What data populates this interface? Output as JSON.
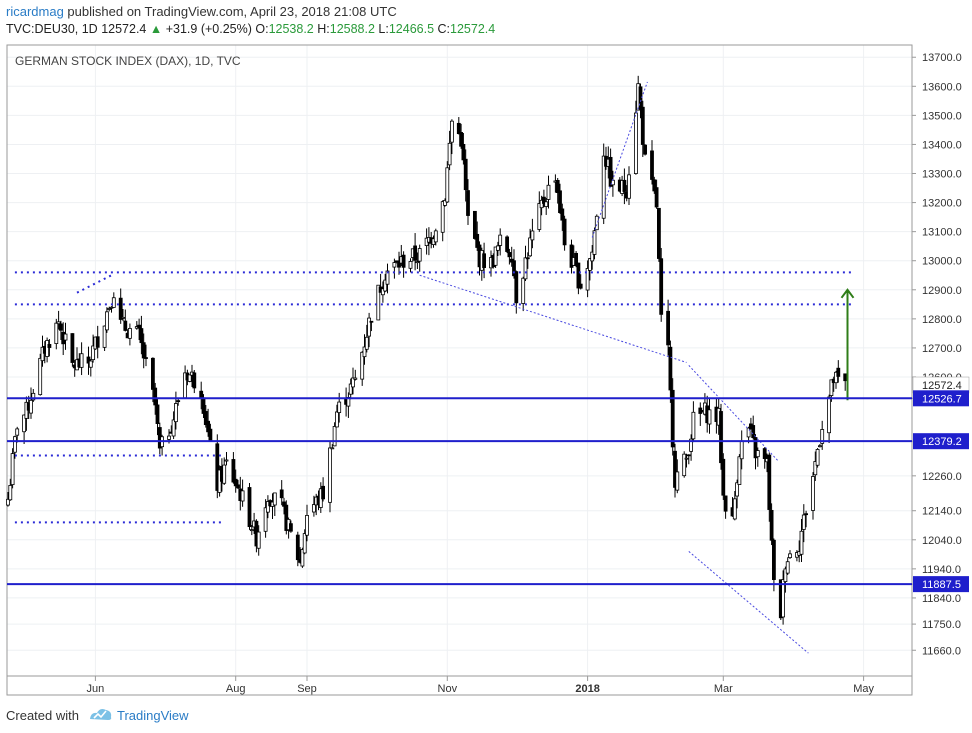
{
  "header": {
    "author": "ricardmag",
    "published": "published on TradingView.com, April 23, 2018 21:08 UTC",
    "symbol": "TVC:DEU30, 1D",
    "last": "12572.4",
    "change": "+31.9 (+0.25%)",
    "o_label": "O:",
    "o_value": "12538.2",
    "h_label": "H:",
    "h_value": "12588.2",
    "l_label": "L:",
    "l_value": "12466.5",
    "c_label": "C:",
    "c_value": "12572.4"
  },
  "footer": {
    "created_with": "Created with",
    "brand": "TradingView"
  },
  "chart_data": {
    "type": "candlestick",
    "title": "GERMAN STOCK INDEX (DAX), 1D, TVC",
    "y_ticks": [
      "13700.0",
      "13600.0",
      "13500.0",
      "13400.0",
      "13300.0",
      "13200.0",
      "13100.0",
      "13000.0",
      "12900.0",
      "12800.0",
      "12700.0",
      "12600.0",
      "12526.7",
      "12379.2",
      "12260.0",
      "12140.0",
      "12040.0",
      "11940.0",
      "11887.5",
      "11840.0",
      "11750.0",
      "11660.0"
    ],
    "x_ticks": [
      "Jun",
      "Aug",
      "Sep",
      "Nov",
      "2018",
      "Mar",
      "May"
    ],
    "price_labels": [
      {
        "text": "12572.4",
        "price": 12572.4,
        "style": "plain"
      },
      {
        "text": "12526.7",
        "price": 12526.7,
        "style": "blue"
      },
      {
        "text": "12379.2",
        "price": 12379.2,
        "style": "blue"
      },
      {
        "text": "11887.5",
        "price": 11887.5,
        "style": "blue"
      }
    ],
    "horizontal_levels": [
      12526.7,
      12379.2,
      11887.5
    ],
    "dotted_levels": [
      12950,
      12840
    ],
    "colors": {
      "lines": "#1f1fcc",
      "dotted": "#2b2bd6",
      "trend": "#4a4ae0",
      "candles": "#000000",
      "arrow": "#2f7d18",
      "header_green": "#2a9a3a",
      "brand": "#2a7cc6"
    },
    "anchors": [
      [
        "2017-04-24",
        12180
      ],
      [
        "2017-04-28",
        12440
      ],
      [
        "2017-05-02",
        12480
      ],
      [
        "2017-05-10",
        12700
      ],
      [
        "2017-05-16",
        12790
      ],
      [
        "2017-05-22",
        12640
      ],
      [
        "2017-05-29",
        12650
      ],
      [
        "2017-06-05",
        12800
      ],
      [
        "2017-06-09",
        12900
      ],
      [
        "2017-06-12",
        12780
      ],
      [
        "2017-06-20",
        12740
      ],
      [
        "2017-06-27",
        12500
      ],
      [
        "2017-06-29",
        12340
      ],
      [
        "2017-07-05",
        12460
      ],
      [
        "2017-07-10",
        12620
      ],
      [
        "2017-07-13",
        12600
      ],
      [
        "2017-07-17",
        12560
      ],
      [
        "2017-07-21",
        12350
      ],
      [
        "2017-07-24",
        12230
      ],
      [
        "2017-07-28",
        12300
      ],
      [
        "2017-08-03",
        12200
      ],
      [
        "2017-08-10",
        12050
      ],
      [
        "2017-08-15",
        12200
      ],
      [
        "2017-08-21",
        12150
      ],
      [
        "2017-08-29",
        11960
      ],
      [
        "2017-09-01",
        12130
      ],
      [
        "2017-09-08",
        12200
      ],
      [
        "2017-09-14",
        12480
      ],
      [
        "2017-09-22",
        12590
      ],
      [
        "2017-09-29",
        12820
      ],
      [
        "2017-10-05",
        12960
      ],
      [
        "2017-10-13",
        13000
      ],
      [
        "2017-10-20",
        13020
      ],
      [
        "2017-10-26",
        13100
      ],
      [
        "2017-10-31",
        13230
      ],
      [
        "2017-11-03",
        13480
      ],
      [
        "2017-11-07",
        13420
      ],
      [
        "2017-11-10",
        13140
      ],
      [
        "2017-11-15",
        13010
      ],
      [
        "2017-11-20",
        12990
      ],
      [
        "2017-11-24",
        13060
      ],
      [
        "2017-11-29",
        13030
      ],
      [
        "2017-12-01",
        12880
      ],
      [
        "2017-12-07",
        13060
      ],
      [
        "2017-12-12",
        13190
      ],
      [
        "2017-12-18",
        13300
      ],
      [
        "2017-12-22",
        13060
      ],
      [
        "2017-12-29",
        12920
      ],
      [
        "2018-01-03",
        13030
      ],
      [
        "2018-01-08",
        13380
      ],
      [
        "2018-01-12",
        13250
      ],
      [
        "2018-01-18",
        13250
      ],
      [
        "2018-01-23",
        13600
      ],
      [
        "2018-01-26",
        13340
      ],
      [
        "2018-01-31",
        13190
      ],
      [
        "2018-02-02",
        12790
      ],
      [
        "2018-02-05",
        12680
      ],
      [
        "2018-02-08",
        12250
      ],
      [
        "2018-02-13",
        12320
      ],
      [
        "2018-02-16",
        12450
      ],
      [
        "2018-02-21",
        12480
      ],
      [
        "2018-02-27",
        12460
      ],
      [
        "2018-03-01",
        12190
      ],
      [
        "2018-03-05",
        12100
      ],
      [
        "2018-03-08",
        12350
      ],
      [
        "2018-03-12",
        12420
      ],
      [
        "2018-03-15",
        12340
      ],
      [
        "2018-03-20",
        12300
      ],
      [
        "2018-03-23",
        11880
      ],
      [
        "2018-03-26",
        11790
      ],
      [
        "2018-03-28",
        11970
      ],
      [
        "2018-04-03",
        12030
      ],
      [
        "2018-04-09",
        12260
      ],
      [
        "2018-04-13",
        12440
      ],
      [
        "2018-04-18",
        12590
      ],
      [
        "2018-04-23",
        12572
      ]
    ],
    "drawings": {
      "trendlines": [
        [
          [
            "2018-01-03",
            13080
          ],
          [
            "2018-01-27",
            13615
          ]
        ],
        [
          [
            "2017-10-20",
            12950
          ],
          [
            "2018-02-13",
            12650
          ]
        ],
        [
          [
            "2018-02-14",
            12640
          ],
          [
            "2018-03-25",
            12310
          ]
        ],
        [
          [
            "2018-02-14",
            12000
          ],
          [
            "2018-04-07",
            11650
          ]
        ]
      ],
      "dotted_segments": [
        [
          [
            "2017-04-27",
            12850
          ],
          [
            "2018-04-27",
            12850
          ]
        ],
        [
          [
            "2017-04-27",
            12960
          ],
          [
            "2018-04-27",
            12960
          ]
        ],
        [
          [
            "2017-04-27",
            12330
          ],
          [
            "2017-07-27",
            12330
          ]
        ],
        [
          [
            "2017-04-27",
            12100
          ],
          [
            "2017-07-27",
            12100
          ]
        ],
        [
          [
            "2017-05-24",
            12890
          ],
          [
            "2017-06-08",
            12950
          ]
        ]
      ],
      "arrow": [
        [
          "2018-04-24",
          12520
        ],
        [
          "2018-04-24",
          12900
        ]
      ]
    }
  }
}
